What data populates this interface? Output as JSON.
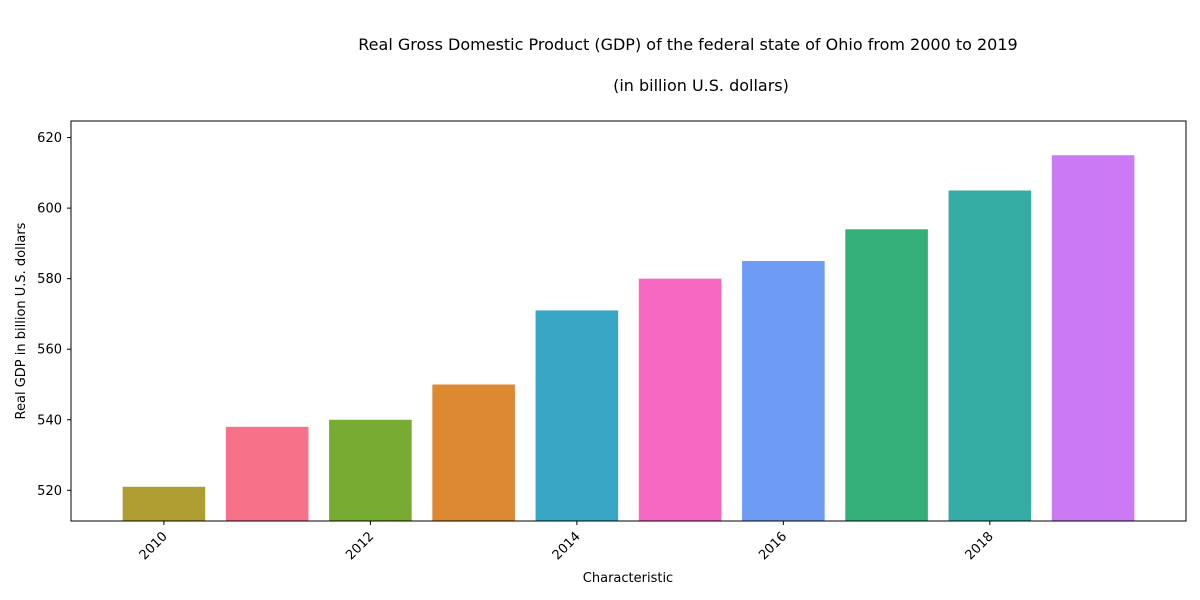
{
  "chart_data": {
    "type": "bar",
    "title": "Real Gross Domestic Product (GDP) of the federal state of Ohio from 2000 to 2019",
    "subtitle": "(in billion U.S. dollars)",
    "xlabel": "Characteristic",
    "ylabel": "Real GDP in billion U.S. dollars",
    "x": [
      2010,
      2011,
      2012,
      2013,
      2014,
      2015,
      2016,
      2017,
      2018,
      2019
    ],
    "values": [
      521,
      538,
      540,
      550,
      571,
      580,
      585,
      594,
      605,
      615
    ],
    "colors": [
      "#ae9d31",
      "#f77189",
      "#77ab31",
      "#dc8932",
      "#38a7c5",
      "#f668c2",
      "#6e9bf4",
      "#33b07a",
      "#36ada4",
      "#cc7af4"
    ],
    "xticks": [
      "2010",
      "2012",
      "2014",
      "2016",
      "2018"
    ],
    "yticks": [
      "520",
      "540",
      "560",
      "580",
      "600",
      "620"
    ],
    "ylim": [
      511.3,
      624.7
    ],
    "xlim": [
      2009.1,
      2019.9
    ],
    "grid": false,
    "legend": "none"
  }
}
